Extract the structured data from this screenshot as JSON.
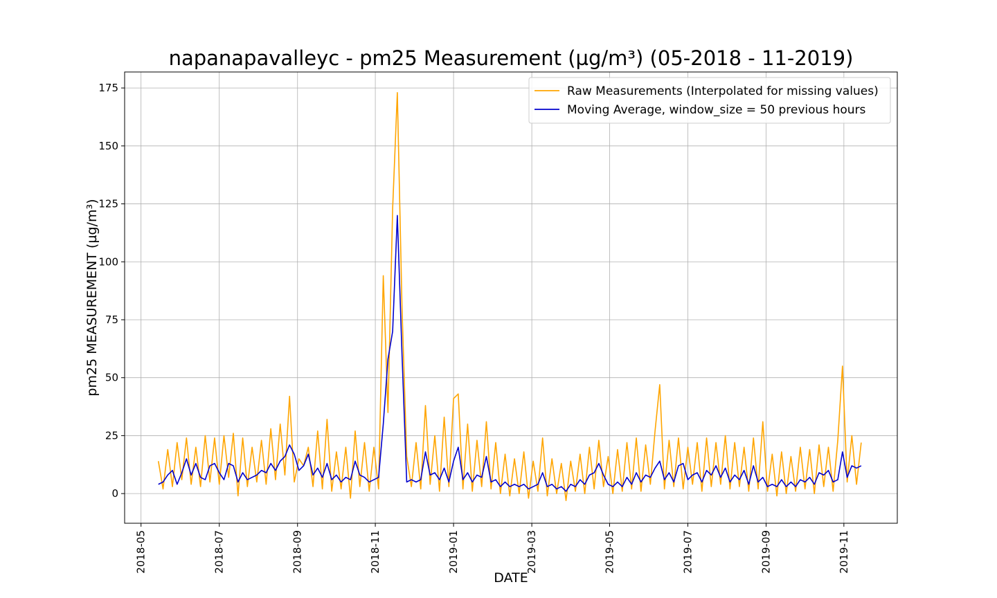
{
  "chart_data": {
    "type": "line",
    "title": "napanapavalleyc - pm25 Measurement (µg/m³) (05-2018 - 11-2019)",
    "x_label": "DATE",
    "y_label": "pm25 MEASUREMENT (µg/m³)",
    "x": [
      2018.37,
      2018.38,
      2018.39,
      2018.4,
      2018.41,
      2018.42,
      2018.43,
      2018.44,
      2018.45,
      2018.46,
      2018.47,
      2018.48,
      2018.49,
      2018.5,
      2018.51,
      2018.52,
      2018.53,
      2018.54,
      2018.55,
      2018.56,
      2018.57,
      2018.58,
      2018.59,
      2018.6,
      2018.61,
      2018.62,
      2018.63,
      2018.64,
      2018.65,
      2018.66,
      2018.67,
      2018.68,
      2018.69,
      2018.7,
      2018.71,
      2018.72,
      2018.73,
      2018.74,
      2018.75,
      2018.76,
      2018.77,
      2018.78,
      2018.79,
      2018.8,
      2018.81,
      2018.82,
      2018.83,
      2018.84,
      2018.85,
      2018.86,
      2018.87,
      2018.88,
      2018.89,
      2018.9,
      2018.91,
      2018.92,
      2018.93,
      2018.94,
      2018.95,
      2018.96,
      2018.97,
      2018.98,
      2018.99,
      2019.0,
      2019.01,
      2019.02,
      2019.03,
      2019.04,
      2019.05,
      2019.06,
      2019.07,
      2019.08,
      2019.09,
      2019.1,
      2019.11,
      2019.12,
      2019.13,
      2019.14,
      2019.15,
      2019.16,
      2019.17,
      2019.18,
      2019.19,
      2019.2,
      2019.21,
      2019.22,
      2019.23,
      2019.24,
      2019.25,
      2019.26,
      2019.27,
      2019.28,
      2019.29,
      2019.3,
      2019.31,
      2019.32,
      2019.33,
      2019.34,
      2019.35,
      2019.36,
      2019.37,
      2019.38,
      2019.39,
      2019.4,
      2019.41,
      2019.42,
      2019.43,
      2019.44,
      2019.45,
      2019.46,
      2019.47,
      2019.48,
      2019.49,
      2019.5,
      2019.51,
      2019.52,
      2019.53,
      2019.54,
      2019.55,
      2019.56,
      2019.57,
      2019.58,
      2019.59,
      2019.6,
      2019.61,
      2019.62,
      2019.63,
      2019.64,
      2019.65,
      2019.66,
      2019.67,
      2019.68,
      2019.69,
      2019.7,
      2019.71,
      2019.72,
      2019.73,
      2019.74,
      2019.75,
      2019.76,
      2019.77,
      2019.78,
      2019.79,
      2019.8,
      2019.81,
      2019.82,
      2019.83,
      2019.84,
      2019.85,
      2019.86,
      2019.87
    ],
    "series": [
      {
        "name": "Raw Measurements (Interpolated for missing values)",
        "color": "#ffa500",
        "values": [
          14,
          2,
          19,
          3,
          22,
          6,
          24,
          4,
          20,
          3,
          25,
          5,
          24,
          4,
          25,
          7,
          26,
          -1,
          24,
          3,
          20,
          5,
          23,
          4,
          28,
          6,
          30,
          8,
          42,
          5,
          15,
          12,
          20,
          3,
          27,
          2,
          32,
          1,
          18,
          2,
          20,
          -2,
          27,
          3,
          22,
          1,
          20,
          2,
          94,
          35,
          123,
          173,
          80,
          16,
          3,
          22,
          2,
          38,
          4,
          25,
          1,
          33,
          3,
          41,
          43,
          2,
          30,
          1,
          23,
          3,
          31,
          2,
          22,
          0,
          17,
          -1,
          15,
          0,
          18,
          -2,
          14,
          1,
          24,
          -1,
          15,
          0,
          13,
          -3,
          14,
          1,
          17,
          0,
          20,
          2,
          23,
          3,
          16,
          0,
          19,
          1,
          22,
          2,
          24,
          1,
          21,
          4,
          27,
          47,
          2,
          23,
          3,
          24,
          2,
          20,
          4,
          22,
          1,
          24,
          3,
          22,
          4,
          25,
          2,
          22,
          3,
          20,
          1,
          24,
          2,
          31,
          1,
          17,
          -1,
          18,
          0,
          16,
          1,
          20,
          2,
          19,
          0,
          21,
          3,
          20,
          1,
          23,
          55,
          5,
          25,
          4,
          22
        ]
      },
      {
        "name": "Moving Average, window_size = 50 previous hours",
        "color": "#0000cd",
        "values": [
          4,
          5,
          8,
          10,
          4,
          9,
          15,
          8,
          13,
          7,
          6,
          12,
          13,
          9,
          6,
          13,
          12,
          5,
          9,
          6,
          7,
          8,
          10,
          9,
          13,
          10,
          14,
          16,
          21,
          17,
          10,
          12,
          17,
          8,
          11,
          7,
          13,
          6,
          8,
          5,
          7,
          6,
          14,
          8,
          7,
          5,
          6,
          7,
          30,
          58,
          70,
          120,
          60,
          5,
          6,
          5,
          6,
          18,
          8,
          9,
          6,
          11,
          5,
          14,
          20,
          6,
          9,
          5,
          8,
          7,
          16,
          5,
          6,
          3,
          5,
          3,
          4,
          3,
          4,
          2,
          3,
          4,
          9,
          3,
          4,
          2,
          3,
          1,
          4,
          3,
          6,
          4,
          8,
          9,
          13,
          8,
          4,
          3,
          5,
          3,
          7,
          4,
          9,
          5,
          8,
          7,
          11,
          14,
          6,
          9,
          5,
          12,
          13,
          6,
          8,
          9,
          5,
          10,
          8,
          12,
          7,
          11,
          5,
          8,
          6,
          10,
          4,
          12,
          5,
          7,
          3,
          4,
          3,
          6,
          3,
          5,
          3,
          6,
          5,
          7,
          4,
          9,
          8,
          10,
          5,
          6,
          18,
          7,
          12,
          11,
          12
        ]
      }
    ],
    "xlim": [
      2018.298,
      2019.947
    ],
    "xticks": [
      {
        "value": 2018.333,
        "label": "2018-05"
      },
      {
        "value": 2018.5,
        "label": "2018-07"
      },
      {
        "value": 2018.667,
        "label": "2018-09"
      },
      {
        "value": 2018.833,
        "label": "2018-11"
      },
      {
        "value": 2019.0,
        "label": "2019-01"
      },
      {
        "value": 2019.167,
        "label": "2019-03"
      },
      {
        "value": 2019.333,
        "label": "2019-05"
      },
      {
        "value": 2019.5,
        "label": "2019-07"
      },
      {
        "value": 2019.667,
        "label": "2019-09"
      },
      {
        "value": 2019.833,
        "label": "2019-11"
      }
    ],
    "ylim": [
      -12.8,
      181.9
    ],
    "yticks": [
      0,
      25,
      50,
      75,
      100,
      125,
      150,
      175
    ],
    "grid": true,
    "legend": "upper right"
  }
}
